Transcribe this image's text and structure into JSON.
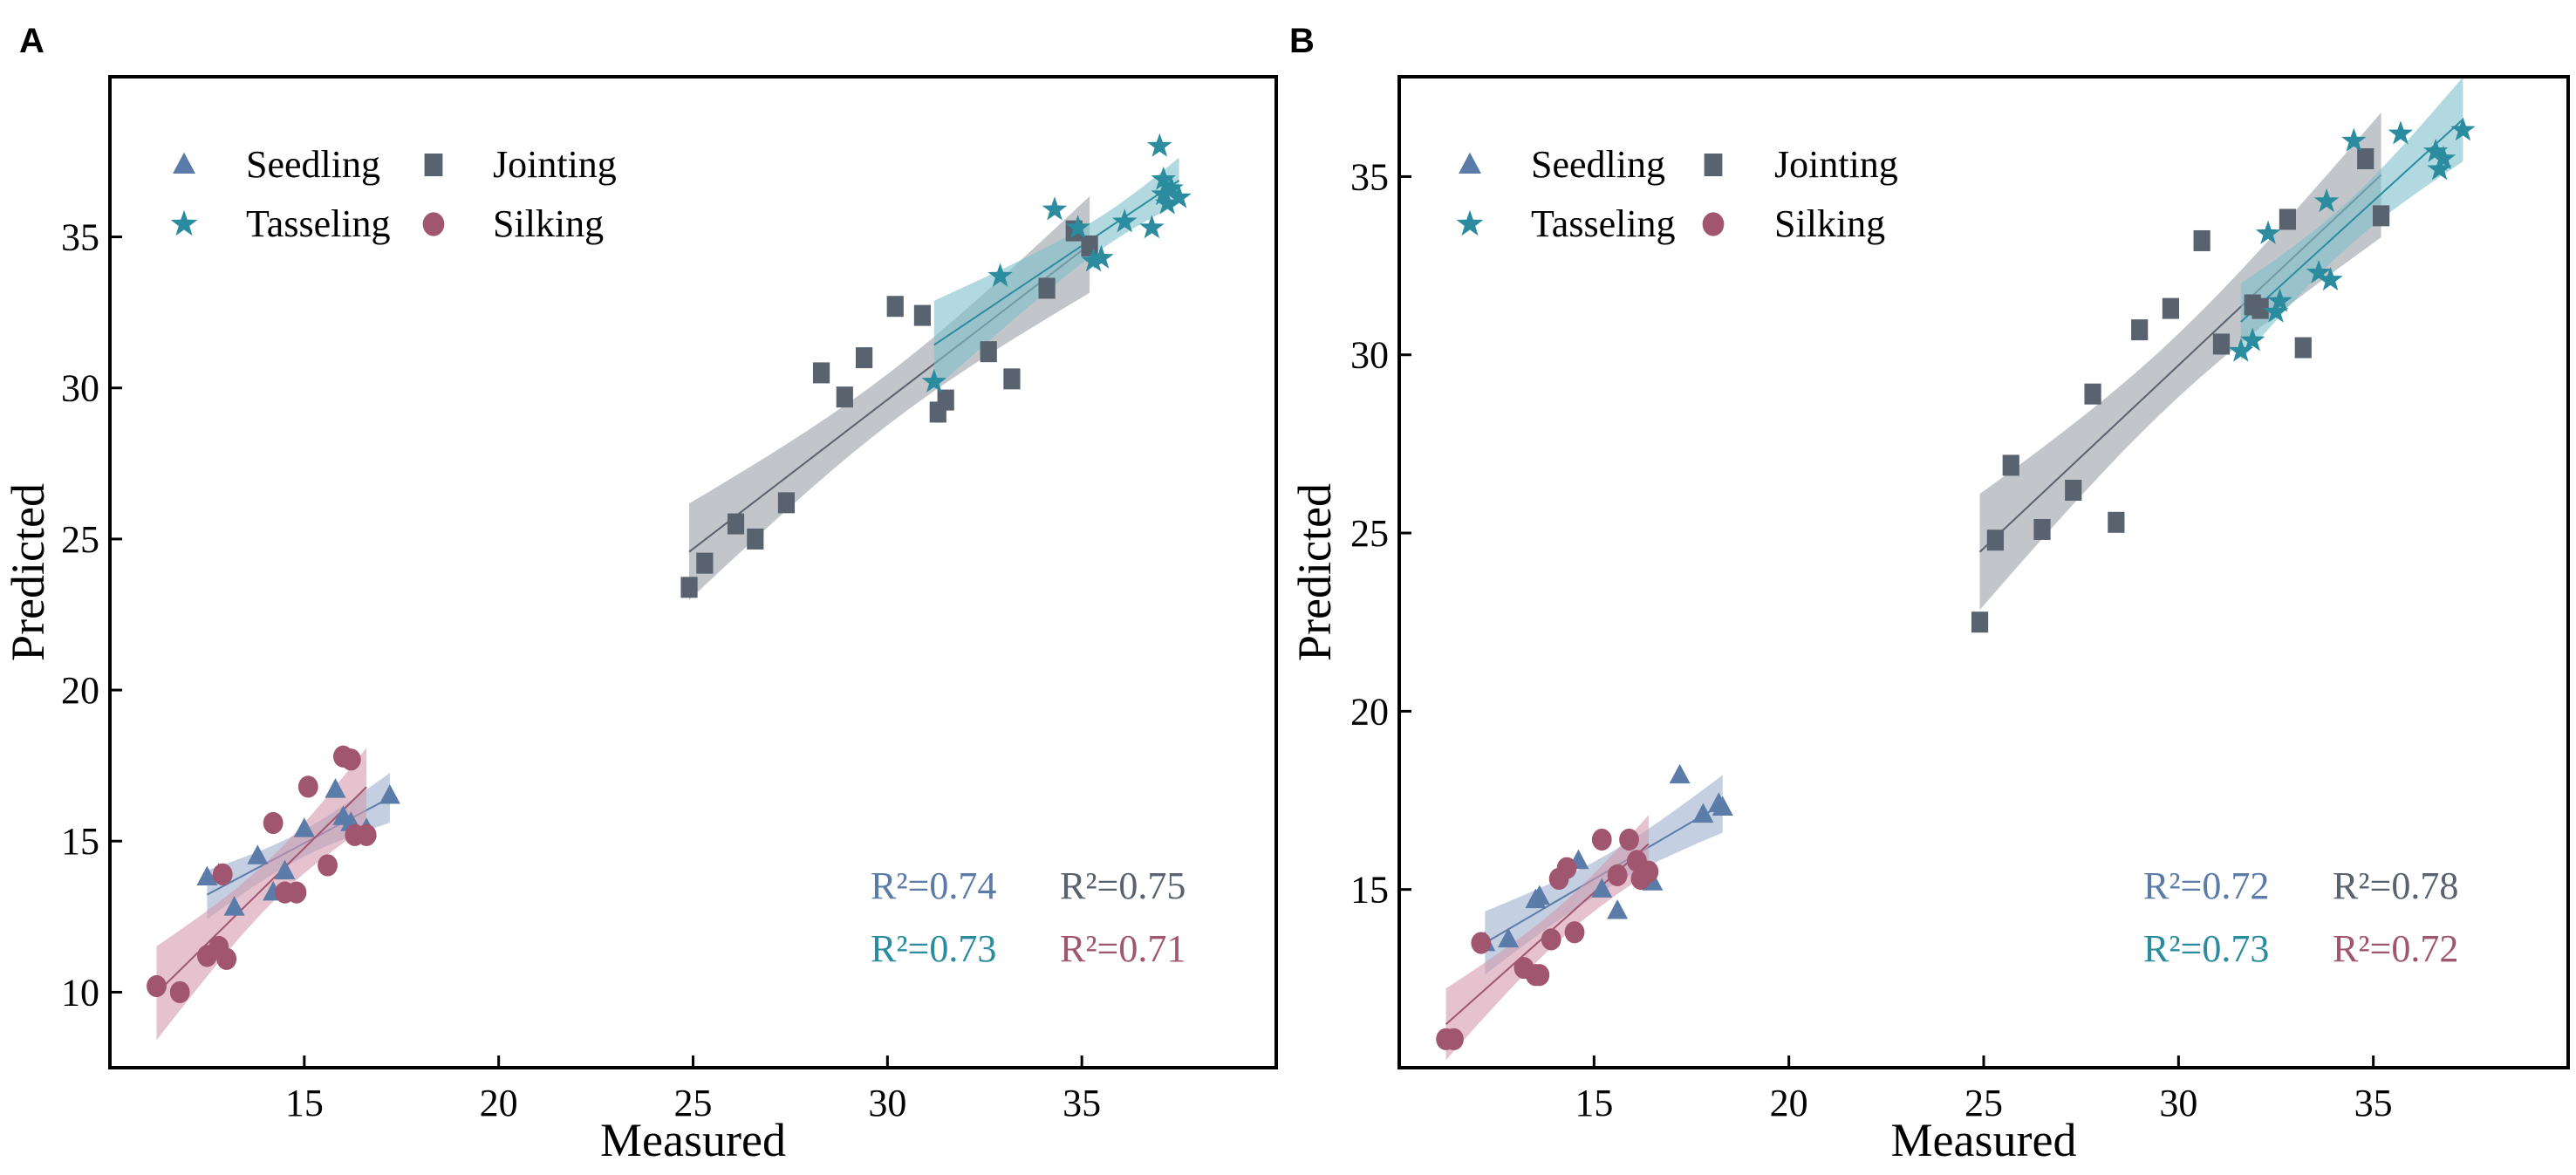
{
  "chart_data": [
    {
      "panel_label": "A",
      "type": "scatter",
      "xlabel": "Measured",
      "ylabel": "Predicted",
      "xlim": [
        10,
        40
      ],
      "ylim": [
        7.5,
        40.3
      ],
      "xticks": [
        15,
        20,
        25,
        30,
        35
      ],
      "yticks": [
        10,
        15,
        20,
        25,
        30,
        35
      ],
      "grid": false,
      "legend_position": "top-left",
      "series": [
        {
          "name": "Seedling",
          "marker": "triangle",
          "color": "#5b7ba8",
          "band": "#9db1cf",
          "r2_label": "R²=0.74",
          "points": [
            [
              12.5,
              13.8
            ],
            [
              13.2,
              12.8
            ],
            [
              13.8,
              14.5
            ],
            [
              14.5,
              14.0
            ],
            [
              15.0,
              15.4
            ],
            [
              15.8,
              16.7
            ],
            [
              16.2,
              15.6
            ],
            [
              16.6,
              15.4
            ],
            [
              17.2,
              16.5
            ],
            [
              16.0,
              15.8
            ],
            [
              14.2,
              13.3
            ],
            [
              12.8,
              13.9
            ]
          ]
        },
        {
          "name": "Jointing",
          "marker": "square",
          "color": "#59626f",
          "band": "#9a9ea6",
          "r2_label": "R²=0.75",
          "points": [
            [
              24.9,
              23.4
            ],
            [
              25.3,
              24.2
            ],
            [
              26.1,
              25.5
            ],
            [
              26.6,
              25.0
            ],
            [
              27.4,
              26.2
            ],
            [
              28.3,
              30.5
            ],
            [
              28.9,
              29.7
            ],
            [
              29.4,
              31.0
            ],
            [
              30.2,
              32.7
            ],
            [
              30.9,
              32.4
            ],
            [
              31.3,
              29.2
            ],
            [
              31.5,
              29.6
            ],
            [
              32.6,
              31.2
            ],
            [
              33.2,
              30.3
            ],
            [
              34.1,
              33.3
            ],
            [
              34.8,
              35.2
            ],
            [
              35.2,
              34.7
            ]
          ]
        },
        {
          "name": "Tasseling",
          "marker": "star",
          "color": "#2a8c9e",
          "band": "#7fc0cb",
          "r2_label": "R²=0.73",
          "points": [
            [
              31.2,
              30.2
            ],
            [
              32.9,
              33.7
            ],
            [
              34.3,
              35.9
            ],
            [
              34.9,
              35.3
            ],
            [
              35.3,
              34.2
            ],
            [
              35.5,
              34.3
            ],
            [
              36.1,
              35.5
            ],
            [
              36.8,
              35.3
            ],
            [
              37.0,
              38.0
            ],
            [
              37.1,
              36.9
            ],
            [
              37.1,
              36.4
            ],
            [
              37.3,
              36.6
            ],
            [
              37.5,
              36.3
            ],
            [
              37.2,
              36.1
            ]
          ]
        },
        {
          "name": "Silking",
          "marker": "circle",
          "color": "#a0566f",
          "band": "#d49aae",
          "r2_label": "R²=0.71",
          "points": [
            [
              11.2,
              10.2
            ],
            [
              11.8,
              10.0
            ],
            [
              12.5,
              11.2
            ],
            [
              12.8,
              11.5
            ],
            [
              13.0,
              11.1
            ],
            [
              12.9,
              13.9
            ],
            [
              14.2,
              15.6
            ],
            [
              14.5,
              13.3
            ],
            [
              14.8,
              13.3
            ],
            [
              15.1,
              16.8
            ],
            [
              15.6,
              14.2
            ],
            [
              16.0,
              17.8
            ],
            [
              16.2,
              17.7
            ],
            [
              16.3,
              15.2
            ],
            [
              16.6,
              15.2
            ]
          ]
        }
      ]
    },
    {
      "panel_label": "B",
      "type": "scatter",
      "xlabel": "Measured",
      "ylabel": "Predicted",
      "xlim": [
        10,
        40
      ],
      "ylim": [
        10,
        37.8
      ],
      "xticks": [
        15,
        20,
        25,
        30,
        35
      ],
      "yticks": [
        15,
        20,
        25,
        30,
        35
      ],
      "grid": false,
      "legend_position": "top-left",
      "series": [
        {
          "name": "Seedling",
          "marker": "triangle",
          "color": "#5b7ba8",
          "band": "#9db1cf",
          "r2_label": "R²=0.72",
          "points": [
            [
              12.2,
              13.5
            ],
            [
              12.8,
              13.6
            ],
            [
              13.5,
              14.7
            ],
            [
              13.6,
              14.8
            ],
            [
              14.6,
              15.8
            ],
            [
              15.6,
              14.4
            ],
            [
              16.5,
              15.2
            ],
            [
              17.2,
              18.2
            ],
            [
              17.8,
              17.1
            ],
            [
              18.2,
              17.4
            ],
            [
              18.3,
              17.3
            ],
            [
              15.2,
              15.0
            ]
          ]
        },
        {
          "name": "Jointing",
          "marker": "square",
          "color": "#59626f",
          "band": "#9a9ea6",
          "r2_label": "R²=0.78",
          "points": [
            [
              24.9,
              22.5
            ],
            [
              25.3,
              24.8
            ],
            [
              25.7,
              26.9
            ],
            [
              26.5,
              25.1
            ],
            [
              27.3,
              26.2
            ],
            [
              27.8,
              28.9
            ],
            [
              28.4,
              25.3
            ],
            [
              29.0,
              30.7
            ],
            [
              29.8,
              31.3
            ],
            [
              30.6,
              33.2
            ],
            [
              31.1,
              30.3
            ],
            [
              31.9,
              31.4
            ],
            [
              32.1,
              31.3
            ],
            [
              32.8,
              33.8
            ],
            [
              33.2,
              30.2
            ],
            [
              34.8,
              35.5
            ],
            [
              35.2,
              33.9
            ]
          ]
        },
        {
          "name": "Tasseling",
          "marker": "star",
          "color": "#2a8c9e",
          "band": "#7fc0cb",
          "r2_label": "R²=0.73",
          "points": [
            [
              31.6,
              30.1
            ],
            [
              31.9,
              30.4
            ],
            [
              32.3,
              33.4
            ],
            [
              32.5,
              31.2
            ],
            [
              32.6,
              31.5
            ],
            [
              33.6,
              32.3
            ],
            [
              33.8,
              34.3
            ],
            [
              33.9,
              32.1
            ],
            [
              34.5,
              36.0
            ],
            [
              35.7,
              36.2
            ],
            [
              36.6,
              35.7
            ],
            [
              36.7,
              35.2
            ],
            [
              36.8,
              35.5
            ],
            [
              37.3,
              36.3
            ]
          ]
        },
        {
          "name": "Silking",
          "marker": "circle",
          "color": "#a0566f",
          "band": "#d49aae",
          "r2_label": "R²=0.72",
          "points": [
            [
              11.2,
              10.8
            ],
            [
              11.4,
              10.8
            ],
            [
              12.1,
              13.5
            ],
            [
              13.2,
              12.8
            ],
            [
              13.5,
              12.6
            ],
            [
              13.6,
              12.6
            ],
            [
              13.9,
              13.6
            ],
            [
              14.1,
              15.3
            ],
            [
              14.3,
              15.6
            ],
            [
              14.5,
              13.8
            ],
            [
              15.2,
              16.4
            ],
            [
              15.6,
              15.4
            ],
            [
              15.9,
              16.4
            ],
            [
              16.1,
              15.8
            ],
            [
              16.2,
              15.3
            ],
            [
              16.4,
              15.5
            ]
          ]
        }
      ]
    }
  ]
}
